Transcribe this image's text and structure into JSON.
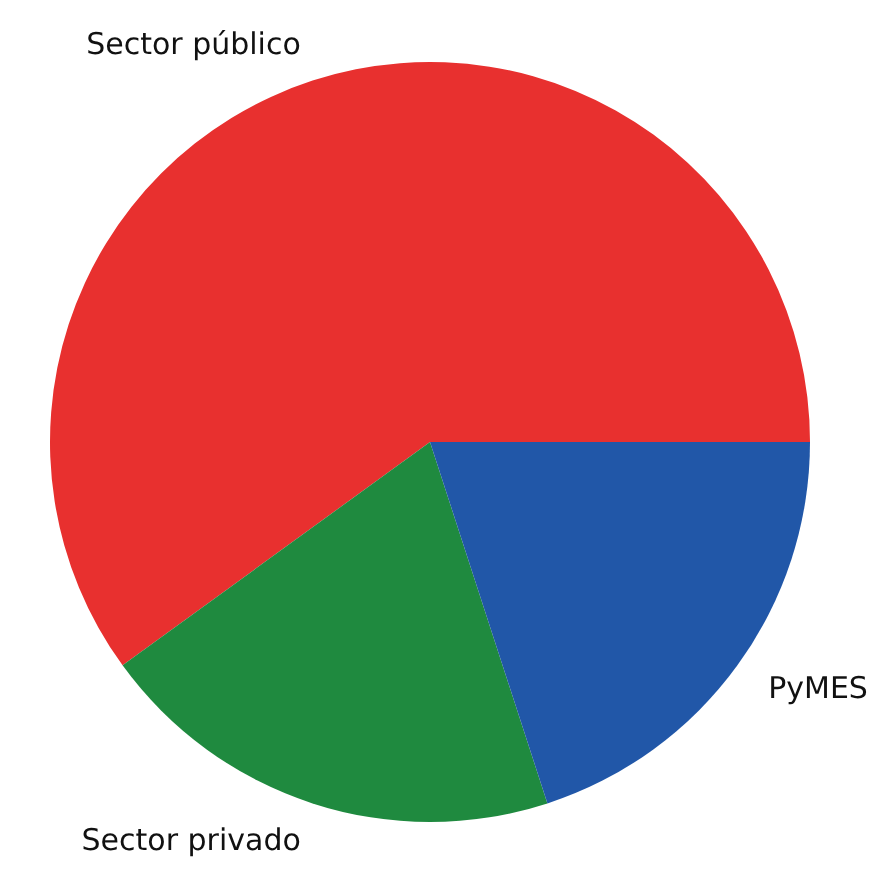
{
  "chart_data": {
    "type": "pie",
    "categories": [
      "Sector público",
      "Sector privado",
      "PyMES"
    ],
    "values": [
      60,
      20,
      20
    ],
    "colors": [
      "#e8302f",
      "#1f8a3f",
      "#2157a8"
    ]
  }
}
